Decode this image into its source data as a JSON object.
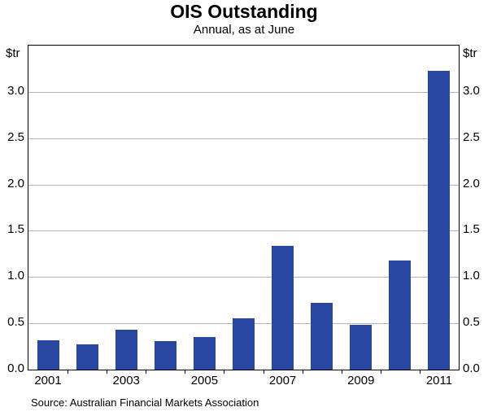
{
  "header": {
    "title": "OIS Outstanding",
    "subtitle": "Annual, as at June"
  },
  "axes": {
    "left_unit": "$tr",
    "right_unit": "$tr"
  },
  "footer": {
    "source": "Source: Australian Financial Markets Association"
  },
  "chart_data": {
    "type": "bar",
    "title": "OIS Outstanding",
    "subtitle": "Annual, as at June",
    "categories": [
      2001,
      2002,
      2003,
      2004,
      2005,
      2006,
      2007,
      2008,
      2009,
      2010,
      2011
    ],
    "values": [
      0.32,
      0.27,
      0.43,
      0.31,
      0.35,
      0.55,
      1.34,
      0.72,
      0.48,
      1.18,
      3.23
    ],
    "xlabel": "",
    "ylabel": "$tr",
    "ylim": [
      0,
      3.5
    ],
    "yticks": [
      0.0,
      0.5,
      1.0,
      1.5,
      2.0,
      2.5,
      3.0
    ],
    "xtick_labels": [
      "2001",
      "2003",
      "2005",
      "2007",
      "2009",
      "2011"
    ],
    "grid": true,
    "legend": "none",
    "bar_color": "#2946A0",
    "source": "Source: Australian Financial Markets Association"
  }
}
